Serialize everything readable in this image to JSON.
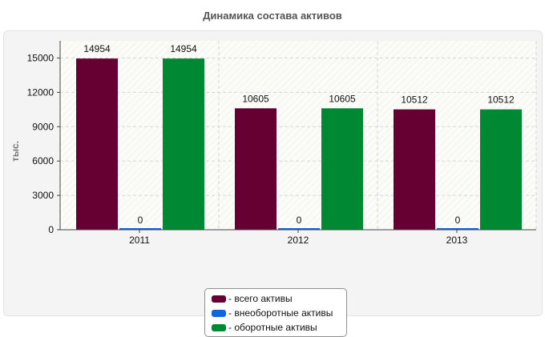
{
  "header": {
    "title": "Динамика состава активов"
  },
  "chart_data": {
    "type": "bar",
    "title": "Динамика состава активов",
    "ylabel": "тыс.",
    "xlabel": "",
    "categories": [
      "2011",
      "2012",
      "2013"
    ],
    "series": [
      {
        "name": "- всего активы",
        "color": "#660033",
        "values": [
          14954,
          10605,
          10512
        ]
      },
      {
        "name": "- внеоборотные активы",
        "color": "#1166dd",
        "values": [
          0,
          0,
          0
        ]
      },
      {
        "name": "- оборотные активы",
        "color": "#008833",
        "values": [
          14954,
          10605,
          10512
        ]
      }
    ],
    "ylim": [
      0,
      16500
    ],
    "yticks": [
      0,
      3000,
      6000,
      9000,
      12000,
      15000
    ],
    "ytick_labels": [
      "0",
      "3000",
      "6000",
      "9000",
      "12000",
      "15000"
    ],
    "data_labels": [
      [
        "14954",
        "10605",
        "10512"
      ],
      [
        "0",
        "0",
        "0"
      ],
      [
        "14954",
        "10605",
        "10512"
      ]
    ],
    "grid": true,
    "legend_position": "bottom"
  }
}
